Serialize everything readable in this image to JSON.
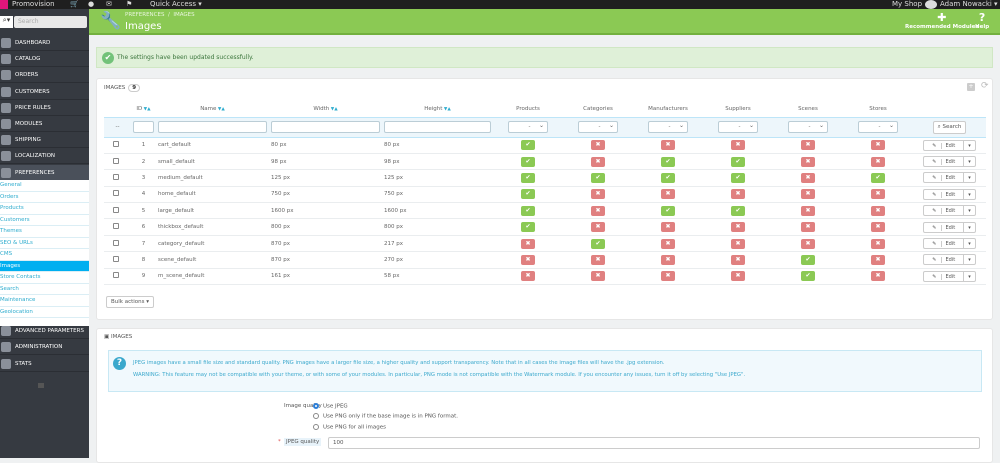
{
  "topbar": {
    "shop_name": "Promovision",
    "quick_access": "Quick Access ▾",
    "my_shop": "My Shop",
    "user": "Adam Nowacki ▾"
  },
  "sidebar": {
    "search_placeholder": "Search",
    "items": [
      {
        "label": "DASHBOARD"
      },
      {
        "label": "CATALOG"
      },
      {
        "label": "ORDERS"
      },
      {
        "label": "CUSTOMERS"
      },
      {
        "label": "PRICE RULES"
      },
      {
        "label": "MODULES"
      },
      {
        "label": "SHIPPING"
      },
      {
        "label": "LOCALIZATION"
      },
      {
        "label": "PREFERENCES"
      }
    ],
    "subitems": [
      "General",
      "Orders",
      "Products",
      "Customers",
      "Themes",
      "SEO & URLs",
      "CMS",
      "Images",
      "Store Contacts",
      "Search",
      "Maintenance",
      "Geolocation"
    ],
    "active_subitem": "Images",
    "bottom_items": [
      {
        "label": "ADVANCED PARAMETERS"
      },
      {
        "label": "ADMINISTRATION"
      },
      {
        "label": "STATS"
      }
    ]
  },
  "header": {
    "breadcrumb": [
      "PREFERENCES",
      "IMAGES"
    ],
    "title": "Images",
    "recommended_modules": "Recommended Modules",
    "help": "Help",
    "color": "#8bc954"
  },
  "alert": {
    "message": "The settings have been updated successfully."
  },
  "images_list": {
    "title": "IMAGES",
    "count": "9",
    "columns": [
      "ID",
      "Name",
      "Width",
      "Height",
      "Products",
      "Categories",
      "Manufacturers",
      "Suppliers",
      "Scenes",
      "Stores"
    ],
    "filter_select_value": "-",
    "search_label": "Search",
    "edit_label": "Edit",
    "bulk_actions": "Bulk actions ▾",
    "rows": [
      {
        "id": "1",
        "name": "cart_default",
        "width": "80 px",
        "height": "80 px",
        "flags": [
          true,
          false,
          false,
          false,
          false,
          false
        ]
      },
      {
        "id": "2",
        "name": "small_default",
        "width": "98 px",
        "height": "98 px",
        "flags": [
          true,
          false,
          true,
          true,
          false,
          false
        ]
      },
      {
        "id": "3",
        "name": "medium_default",
        "width": "125 px",
        "height": "125 px",
        "flags": [
          true,
          true,
          true,
          true,
          false,
          true
        ]
      },
      {
        "id": "4",
        "name": "home_default",
        "width": "750 px",
        "height": "750 px",
        "flags": [
          true,
          false,
          false,
          false,
          false,
          false
        ]
      },
      {
        "id": "5",
        "name": "large_default",
        "width": "1600 px",
        "height": "1600 px",
        "flags": [
          true,
          false,
          true,
          true,
          false,
          false
        ]
      },
      {
        "id": "6",
        "name": "thickbox_default",
        "width": "800 px",
        "height": "800 px",
        "flags": [
          true,
          false,
          false,
          false,
          false,
          false
        ]
      },
      {
        "id": "7",
        "name": "category_default",
        "width": "870 px",
        "height": "217 px",
        "flags": [
          false,
          true,
          false,
          false,
          false,
          false
        ]
      },
      {
        "id": "8",
        "name": "scene_default",
        "width": "870 px",
        "height": "270 px",
        "flags": [
          false,
          false,
          false,
          false,
          true,
          false
        ]
      },
      {
        "id": "9",
        "name": "m_scene_default",
        "width": "161 px",
        "height": "58 px",
        "flags": [
          false,
          false,
          false,
          false,
          true,
          false
        ]
      }
    ]
  },
  "settings": {
    "title": "IMAGES",
    "info_1": "JPEG images have a small file size and standard quality. PNG images have a larger file size, a higher quality and support transparency. Note that in all cases the image files will have the .jpg extension.",
    "info_2": "WARNING: This feature may not be compatible with your theme, or with some of your modules. In particular, PNG mode is not compatible with the Watermark module. If you encounter any issues, turn it off by selecting \"Use JPEG\".",
    "image_quality_label": "Image quality",
    "options": [
      "Use JPEG",
      "Use PNG only if the base image is in PNG format.",
      "Use PNG for all images"
    ],
    "selected_option": "Use JPEG",
    "jpeg_quality_label": "JPEG quality",
    "jpeg_quality_value": "100"
  }
}
